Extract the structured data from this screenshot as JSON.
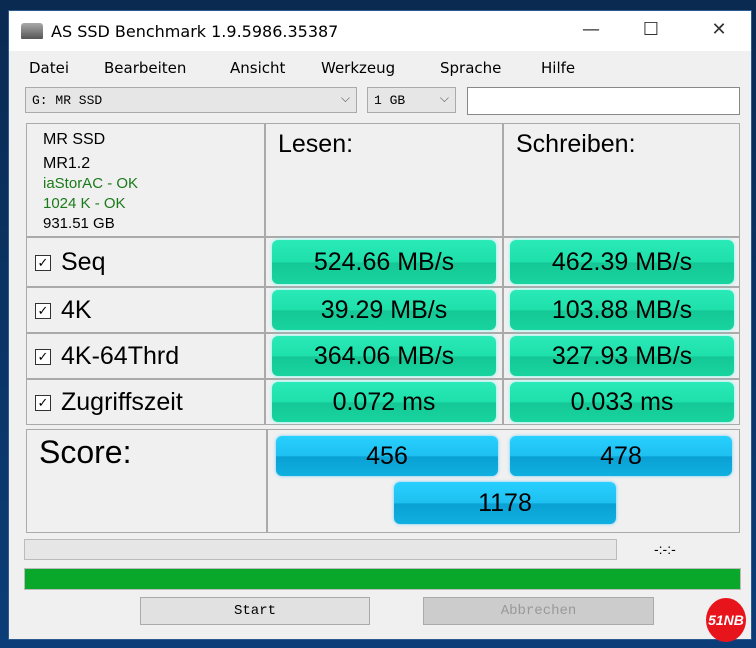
{
  "window": {
    "title": "AS SSD Benchmark 1.9.5986.35387",
    "minimize": "—",
    "maximize": "☐",
    "close": "✕"
  },
  "menu": [
    "Datei",
    "Bearbeiten",
    "Ansicht",
    "Werkzeug",
    "Sprache",
    "Hilfe"
  ],
  "drive_select": {
    "value": "G: MR SSD"
  },
  "size_select": {
    "value": "1 GB"
  },
  "text_field": {
    "value": ""
  },
  "drive_info": {
    "name": "MR SSD",
    "firmware": "MR1.2",
    "driver": "iaStorAC - OK",
    "alignment": "1024 K - OK",
    "capacity": "931.51 GB",
    "ok_color": "#1a7a1a"
  },
  "headers": {
    "read": "Lesen:",
    "write": "Schreiben:"
  },
  "rows": [
    {
      "label": "Seq",
      "checked": true,
      "read": "524.66 MB/s",
      "write": "462.39 MB/s"
    },
    {
      "label": "4K",
      "checked": true,
      "read": "39.29 MB/s",
      "write": "103.88 MB/s"
    },
    {
      "label": "4K-64Thrd",
      "checked": true,
      "read": "364.06 MB/s",
      "write": "327.93 MB/s"
    },
    {
      "label": "Zugriffszeit",
      "checked": true,
      "read": "0.072 ms",
      "write": "0.033 ms"
    }
  ],
  "score": {
    "label": "Score:",
    "read": "456",
    "write": "478",
    "total": "1178"
  },
  "progress": {
    "percent": 0,
    "time": "-:-:-"
  },
  "status_bar": {
    "percent": 100,
    "color": "#0aa82a"
  },
  "buttons": {
    "start": "Start",
    "abort": "Abbrechen"
  },
  "logo": "51NB"
}
